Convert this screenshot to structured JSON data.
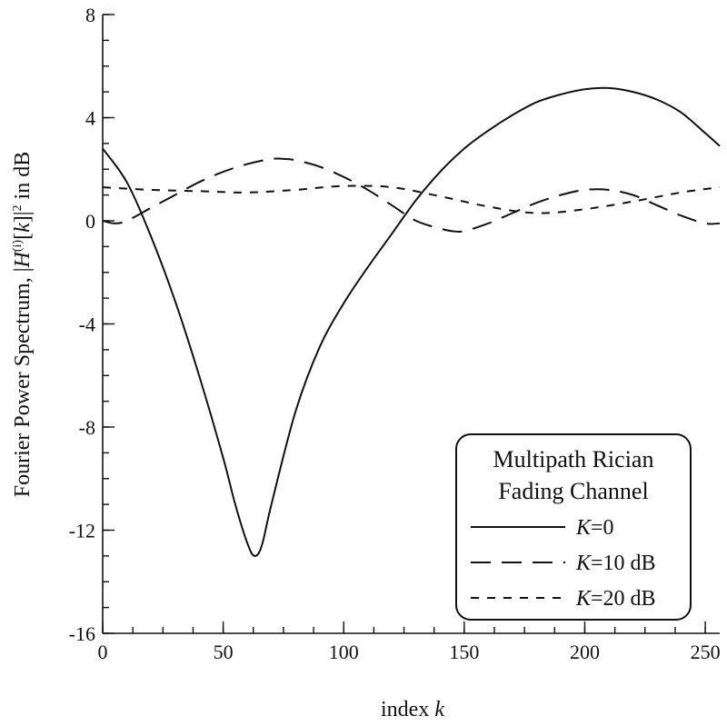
{
  "chart_data": {
    "type": "line",
    "xlabel_text": "index ",
    "xlabel_var": "k",
    "ylabel": {
      "prefix": "Fourier Power Spectrum, |",
      "H": "H",
      "sup": "(i)",
      "open_bracket": "[",
      "k": "k",
      "close": "]|",
      "power": "2",
      "suffix": " in dB"
    },
    "xlim": [
      0,
      256
    ],
    "ylim": [
      -16,
      8
    ],
    "x_ticks": [
      0,
      50,
      100,
      150,
      200,
      250
    ],
    "x_tick_labels": [
      "0",
      "50",
      "100",
      "150",
      "200",
      "250"
    ],
    "x_minor_step": 12.5,
    "y_ticks": [
      -16,
      -12,
      -8,
      -4,
      0,
      4,
      8
    ],
    "y_tick_labels": [
      "-16",
      "-12",
      "-8",
      "-4",
      "0",
      "4",
      "8"
    ],
    "y_minor_step": 1,
    "grid": false,
    "legend": {
      "placement": "bottom-right",
      "title_line1": "Multipath Rician",
      "title_line2": "Fading Channel",
      "entries": [
        {
          "var": "K",
          "text": "=0",
          "dash": "solid"
        },
        {
          "var": "K",
          "text": "=10 dB",
          "dash": "long-dash"
        },
        {
          "var": "K",
          "text": "=20 dB",
          "dash": "short-dash"
        }
      ]
    },
    "series": [
      {
        "name": "K=0",
        "dash": "solid",
        "x": [
          0,
          10,
          20,
          30,
          40,
          50,
          55,
          60,
          63,
          66,
          70,
          80,
          90,
          100,
          110,
          120,
          130,
          140,
          150,
          160,
          170,
          180,
          190,
          200,
          210,
          220,
          230,
          240,
          250,
          256
        ],
        "y": [
          2.8,
          1.5,
          -0.6,
          -3.1,
          -6.0,
          -9.2,
          -11.0,
          -12.5,
          -13.0,
          -12.6,
          -11.0,
          -7.4,
          -4.9,
          -3.2,
          -1.8,
          -0.5,
          0.8,
          1.9,
          2.8,
          3.5,
          4.1,
          4.6,
          4.9,
          5.1,
          5.15,
          5.0,
          4.7,
          4.2,
          3.4,
          2.9
        ]
      },
      {
        "name": "K=10 dB",
        "dash": "long-dash",
        "x": [
          0,
          5,
          10,
          20,
          30,
          40,
          50,
          60,
          70,
          75,
          80,
          90,
          100,
          110,
          120,
          130,
          140,
          145,
          150,
          160,
          170,
          180,
          190,
          200,
          210,
          220,
          230,
          240,
          250,
          256
        ],
        "y": [
          0.0,
          -0.1,
          0.0,
          0.5,
          1.0,
          1.5,
          1.9,
          2.2,
          2.4,
          2.4,
          2.35,
          2.1,
          1.7,
          1.2,
          0.6,
          0.0,
          -0.3,
          -0.4,
          -0.4,
          -0.1,
          0.3,
          0.7,
          1.0,
          1.2,
          1.2,
          1.0,
          0.6,
          0.2,
          -0.1,
          -0.1
        ]
      },
      {
        "name": "K=20 dB",
        "dash": "short-dash",
        "x": [
          0,
          20,
          40,
          60,
          80,
          100,
          120,
          140,
          160,
          180,
          200,
          220,
          240,
          256
        ],
        "y": [
          1.3,
          1.2,
          1.15,
          1.1,
          1.2,
          1.35,
          1.3,
          0.95,
          0.55,
          0.3,
          0.45,
          0.75,
          1.1,
          1.3
        ]
      }
    ]
  }
}
